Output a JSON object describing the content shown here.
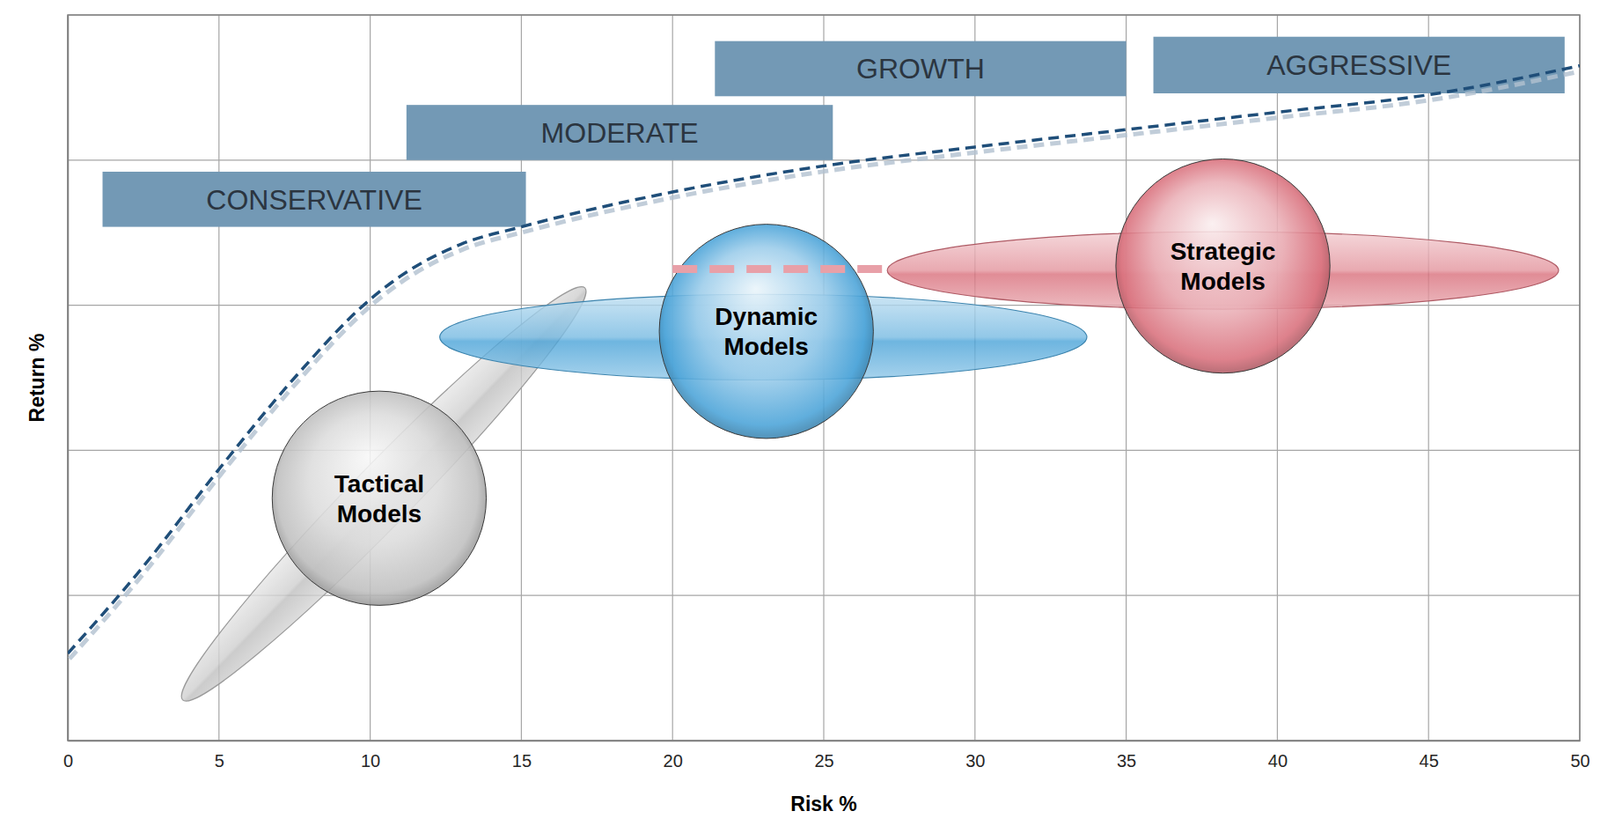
{
  "chart_data": {
    "type": "bubble",
    "xlabel": "Risk %",
    "ylabel": "Return %",
    "xlim": [
      0,
      50
    ],
    "ylim": [
      0,
      5
    ],
    "xticks": [
      0,
      5,
      10,
      15,
      20,
      25,
      30,
      35,
      40,
      45,
      50
    ],
    "yticks": [
      0,
      1,
      2,
      3,
      4,
      5
    ],
    "grid": true,
    "tick_labels": "x",
    "frontier": {
      "x": [
        0,
        2.5,
        5,
        7.5,
        10,
        11,
        13,
        15,
        20,
        25,
        30,
        35,
        40,
        45,
        50
      ],
      "values": [
        0.6,
        1.2,
        1.87,
        2.5,
        3.04,
        3.2,
        3.42,
        3.54,
        3.78,
        3.96,
        4.09,
        4.21,
        4.33,
        4.45,
        4.65
      ],
      "color": "#1f4e79",
      "line_style": "dashed"
    },
    "series": [
      {
        "name": "Tactical Models",
        "color": "#bfbfbf",
        "x": [
          10.3
        ],
        "values": [
          1.67
        ],
        "size": [
          3.54
        ],
        "ellipse": {
          "x": [
            3.8,
            17.1
          ],
          "y": [
            0.28,
            3.12
          ],
          "thickness": 2.0
        }
      },
      {
        "name": "Dynamic Models",
        "color": "#4aa3d8",
        "x": [
          23.1
        ],
        "values": [
          2.82
        ],
        "size": [
          3.54
        ],
        "ellipse": {
          "x": [
            12.3,
            33.7
          ],
          "y": [
            2.78,
            2.78
          ],
          "thickness": 2.83
        }
      },
      {
        "name": "Strategic Models",
        "color": "#d9707c",
        "x": [
          38.2
        ],
        "values": [
          3.27
        ],
        "size": [
          3.54
        ],
        "ellipse": {
          "x": [
            27.1,
            49.3
          ],
          "y": [
            3.24,
            3.24
          ],
          "thickness": 2.56
        }
      }
    ],
    "connector": {
      "x": [
        20,
        27.1
      ],
      "values": [
        3.25,
        3.25
      ],
      "color": "#e8a0a8",
      "line_style": "dashed"
    },
    "bands": [
      {
        "label": "CONSERVATIVE",
        "x": [
          1.15,
          15.15
        ],
        "y": [
          3.54,
          3.92
        ],
        "color": "#7399b5"
      },
      {
        "label": "MODERATE",
        "x": [
          11.2,
          25.3
        ],
        "y": [
          4.0,
          4.38
        ],
        "color": "#7399b5"
      },
      {
        "label": "GROWTH",
        "x": [
          21.4,
          35.0
        ],
        "y": [
          4.44,
          4.82
        ],
        "color": "#7399b5"
      },
      {
        "label": "AGGRESSIVE",
        "x": [
          35.9,
          49.5
        ],
        "y": [
          4.46,
          4.85
        ],
        "color": "#7399b5"
      }
    ]
  }
}
